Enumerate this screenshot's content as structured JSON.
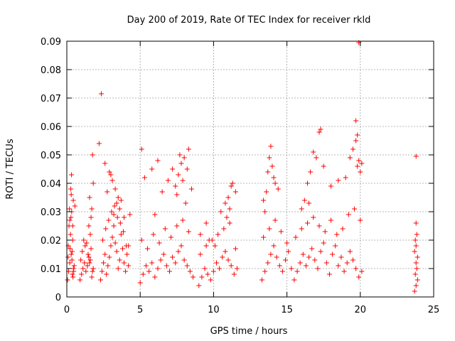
{
  "chart_data": {
    "type": "scatter",
    "title": "Day 200 of 2019, Rate Of TEC Index for receiver rkld",
    "xlabel": "GPS time / hours",
    "ylabel": "ROTI / TECUs",
    "xlim": [
      0,
      25
    ],
    "ylim": [
      0,
      0.09
    ],
    "xticks": [
      0,
      5,
      10,
      15,
      20,
      25
    ],
    "xtick_labels": [
      "0",
      "5",
      "10",
      "15",
      "20",
      "25"
    ],
    "yticks": [
      0,
      0.01,
      0.02,
      0.03,
      0.04,
      0.05,
      0.06,
      0.07,
      0.08,
      0.09
    ],
    "ytick_labels": [
      "0",
      "0.01",
      "0.02",
      "0.03",
      "0.04",
      "0.05",
      "0.06",
      "0.07",
      "0.08",
      "0.09"
    ],
    "grid": true,
    "marker": "+",
    "marker_color": "#ff0000",
    "series": [
      {
        "name": "ROTI",
        "x": [
          0.05,
          0.12,
          0.2,
          0.3,
          0.38,
          0.45,
          0.1,
          0.25,
          0.35,
          0.42,
          0.5,
          0.15,
          0.28,
          0.4,
          0.08,
          0.33,
          0.22,
          0.47,
          0.18,
          0.36,
          0.55,
          0.32,
          0.44,
          0.27,
          0.3,
          0.4,
          0.2,
          0.9,
          1.0,
          1.1,
          1.2,
          1.3,
          1.4,
          1.5,
          1.6,
          1.7,
          1.8,
          1.05,
          1.25,
          1.45,
          1.65,
          1.15,
          1.35,
          1.55,
          1.75,
          0.95,
          1.6,
          1.7,
          1.75,
          1.65,
          1.8,
          1.5,
          1.55,
          2.3,
          2.4,
          2.5,
          2.6,
          2.7,
          2.8,
          2.9,
          3.0,
          3.1,
          3.2,
          3.3,
          3.4,
          3.5,
          3.6,
          3.7,
          3.8,
          3.9,
          4.0,
          4.1,
          4.2,
          2.45,
          2.65,
          2.85,
          3.05,
          3.25,
          3.45,
          3.65,
          3.85,
          4.05,
          2.2,
          2.6,
          2.75,
          3.0,
          3.3,
          3.5,
          3.2,
          3.4,
          3.6,
          2.9,
          3.1,
          3.7,
          3.9,
          4.3,
          4.2,
          2.35,
          5.0,
          5.2,
          5.4,
          5.6,
          5.8,
          6.0,
          6.2,
          6.4,
          6.6,
          6.8,
          7.0,
          7.2,
          7.4,
          7.6,
          7.8,
          8.0,
          8.2,
          8.4,
          8.6,
          5.1,
          5.5,
          5.9,
          6.3,
          6.7,
          7.1,
          7.5,
          7.9,
          8.3,
          5.1,
          5.3,
          5.8,
          6.2,
          6.5,
          6.9,
          7.2,
          7.4,
          7.6,
          7.8,
          8.0,
          8.2,
          8.5,
          7.7,
          7.9,
          8.1,
          7.5,
          6.0,
          8.3,
          9.0,
          9.2,
          9.4,
          9.6,
          9.8,
          10.0,
          10.2,
          10.4,
          10.6,
          10.8,
          11.0,
          11.2,
          11.4,
          11.6,
          9.1,
          9.5,
          9.9,
          10.3,
          10.7,
          11.1,
          11.5,
          9.1,
          9.5,
          9.7,
          10.1,
          10.5,
          10.8,
          11.0,
          11.2,
          11.3,
          11.5,
          10.9,
          11.1,
          13.3,
          13.5,
          13.7,
          13.9,
          14.1,
          14.3,
          14.5,
          14.7,
          14.9,
          15.1,
          15.3,
          13.4,
          13.8,
          14.2,
          14.6,
          15.0,
          13.4,
          13.7,
          13.8,
          13.9,
          14.0,
          14.2,
          14.4,
          13.6,
          14.1,
          13.5,
          15.5,
          15.7,
          15.9,
          16.1,
          16.3,
          16.5,
          16.7,
          16.9,
          17.1,
          17.3,
          17.5,
          17.7,
          17.9,
          18.1,
          18.3,
          18.5,
          18.7,
          18.9,
          19.1,
          19.3,
          19.5,
          19.7,
          19.9,
          20.1,
          15.6,
          16.0,
          16.4,
          16.8,
          17.2,
          17.6,
          18.0,
          18.4,
          18.8,
          19.2,
          19.6,
          20.0,
          16.2,
          16.4,
          16.6,
          16.8,
          17.0,
          17.2,
          16.5,
          17.3,
          17.5,
          16.0,
          18.0,
          18.5,
          19.0,
          19.3,
          19.5,
          19.7,
          19.8,
          19.9,
          20.0,
          20.1,
          19.9,
          19.7,
          19.8,
          23.7,
          23.8,
          23.9,
          23.75,
          23.85,
          23.8,
          23.9,
          23.7,
          23.8,
          23.75,
          23.85,
          23.8,
          23.8
        ],
        "y": [
          0.006,
          0.009,
          0.012,
          0.015,
          0.008,
          0.01,
          0.018,
          0.022,
          0.013,
          0.007,
          0.011,
          0.025,
          0.028,
          0.02,
          0.014,
          0.03,
          0.017,
          0.009,
          0.031,
          0.016,
          0.032,
          0.043,
          0.034,
          0.038,
          0.036,
          0.025,
          0.027,
          0.006,
          0.008,
          0.01,
          0.012,
          0.009,
          0.011,
          0.014,
          0.013,
          0.007,
          0.01,
          0.016,
          0.018,
          0.015,
          0.017,
          0.02,
          0.019,
          0.012,
          0.009,
          0.013,
          0.022,
          0.031,
          0.05,
          0.028,
          0.04,
          0.025,
          0.035,
          0.006,
          0.009,
          0.012,
          0.015,
          0.008,
          0.011,
          0.014,
          0.018,
          0.021,
          0.025,
          0.019,
          0.016,
          0.01,
          0.013,
          0.022,
          0.017,
          0.012,
          0.009,
          0.015,
          0.011,
          0.02,
          0.024,
          0.027,
          0.03,
          0.032,
          0.028,
          0.026,
          0.023,
          0.018,
          0.054,
          0.047,
          0.037,
          0.043,
          0.038,
          0.035,
          0.029,
          0.033,
          0.031,
          0.044,
          0.041,
          0.034,
          0.028,
          0.029,
          0.018,
          0.0715,
          0.005,
          0.008,
          0.011,
          0.009,
          0.012,
          0.007,
          0.01,
          0.013,
          0.015,
          0.011,
          0.009,
          0.014,
          0.012,
          0.016,
          0.018,
          0.013,
          0.011,
          0.009,
          0.007,
          0.02,
          0.017,
          0.022,
          0.019,
          0.024,
          0.021,
          0.025,
          0.027,
          0.023,
          0.052,
          0.042,
          0.045,
          0.048,
          0.037,
          0.041,
          0.045,
          0.039,
          0.043,
          0.047,
          0.049,
          0.045,
          0.038,
          0.05,
          0.041,
          0.033,
          0.036,
          0.029,
          0.052,
          0.004,
          0.007,
          0.01,
          0.008,
          0.006,
          0.009,
          0.012,
          0.01,
          0.014,
          0.016,
          0.013,
          0.011,
          0.008,
          0.01,
          0.015,
          0.018,
          0.02,
          0.022,
          0.024,
          0.026,
          0.017,
          0.022,
          0.026,
          0.02,
          0.018,
          0.03,
          0.033,
          0.035,
          0.039,
          0.04,
          0.037,
          0.028,
          0.031,
          0.006,
          0.009,
          0.012,
          0.015,
          0.018,
          0.014,
          0.011,
          0.009,
          0.013,
          0.016,
          0.01,
          0.021,
          0.024,
          0.027,
          0.023,
          0.019,
          0.034,
          0.044,
          0.049,
          0.053,
          0.046,
          0.04,
          0.038,
          0.037,
          0.042,
          0.03,
          0.006,
          0.009,
          0.012,
          0.015,
          0.011,
          0.014,
          0.017,
          0.013,
          0.01,
          0.016,
          0.019,
          0.012,
          0.008,
          0.015,
          0.018,
          0.011,
          0.014,
          0.009,
          0.012,
          0.016,
          0.013,
          0.01,
          0.007,
          0.009,
          0.021,
          0.024,
          0.026,
          0.028,
          0.025,
          0.023,
          0.027,
          0.022,
          0.024,
          0.029,
          0.031,
          0.027,
          0.034,
          0.04,
          0.044,
          0.051,
          0.049,
          0.058,
          0.033,
          0.059,
          0.046,
          0.031,
          0.039,
          0.041,
          0.042,
          0.049,
          0.052,
          0.055,
          0.046,
          0.048,
          0.044,
          0.047,
          0.0895,
          0.062,
          0.057,
          0.002,
          0.004,
          0.006,
          0.008,
          0.01,
          0.012,
          0.014,
          0.016,
          0.018,
          0.02,
          0.022,
          0.026,
          0.0495
        ]
      }
    ]
  }
}
